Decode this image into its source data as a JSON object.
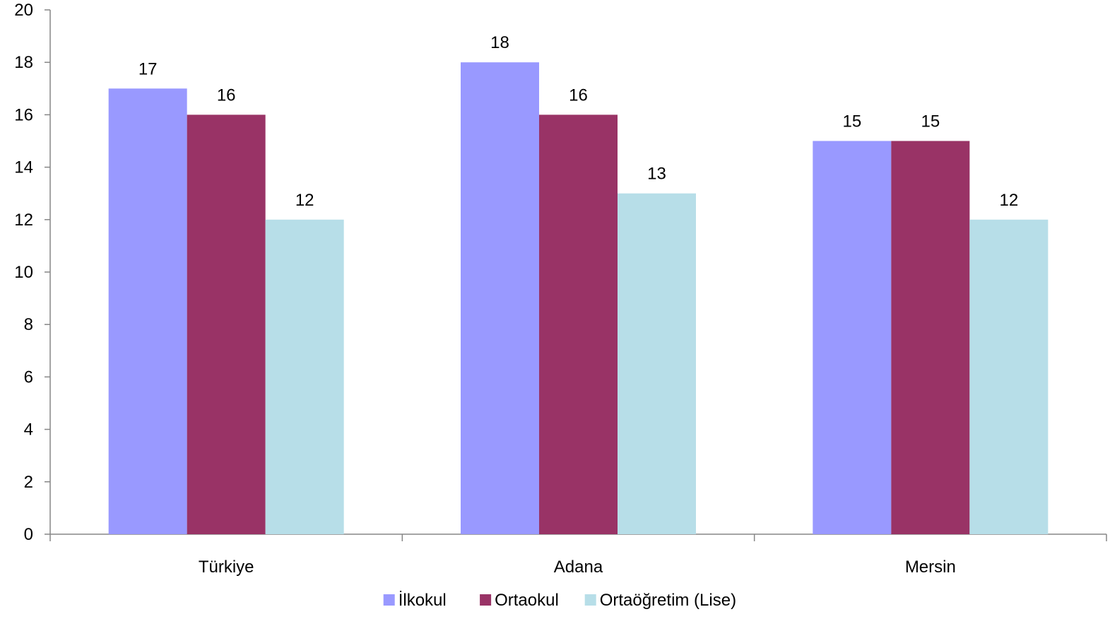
{
  "chart_data": {
    "type": "bar",
    "title": "",
    "xlabel": "",
    "ylabel": "",
    "categories": [
      "Türkiye",
      "Adana",
      "Mersin"
    ],
    "series": [
      {
        "name": "İlkokul",
        "values": [
          17,
          18,
          15
        ],
        "color": "#9999FF"
      },
      {
        "name": "Ortaokul",
        "values": [
          16,
          16,
          15
        ],
        "color": "#993366"
      },
      {
        "name": "Ortaöğretim (Lise)",
        "values": [
          12,
          13,
          12
        ],
        "color": "#B7DEE8"
      }
    ],
    "ylim": [
      0,
      20
    ],
    "yticks": [
      0,
      2,
      4,
      6,
      8,
      10,
      12,
      14,
      16,
      18,
      20
    ],
    "grid": false,
    "legend_position": "bottom"
  }
}
